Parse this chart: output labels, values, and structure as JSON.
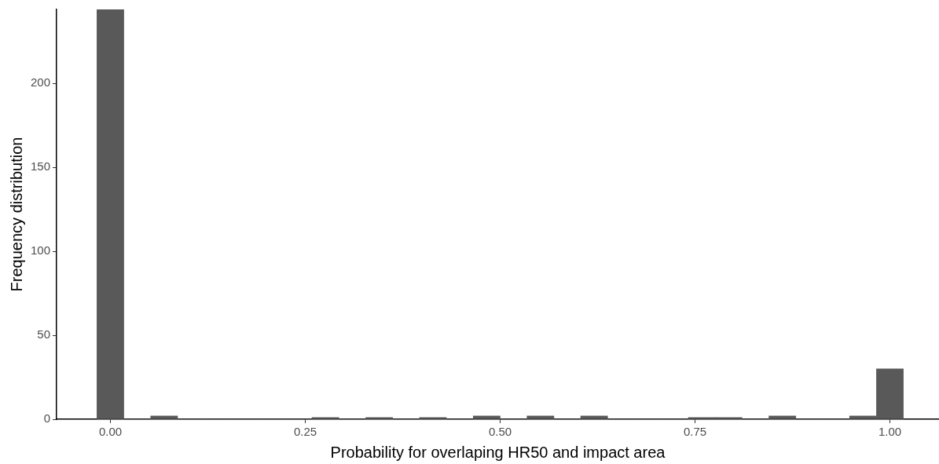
{
  "chart_data": {
    "type": "histogram",
    "xlabel": "Probability for overlaping HR50 and impact area",
    "ylabel": "Frequency distribution",
    "bins": [
      -0.0172,
      0.0172,
      0.0517,
      0.0862,
      0.1207,
      0.1552,
      0.1897,
      0.2241,
      0.2586,
      0.2931,
      0.3276,
      0.3621,
      0.3966,
      0.431,
      0.4655,
      0.5,
      0.5345,
      0.569,
      0.6034,
      0.6379,
      0.6724,
      0.7069,
      0.7414,
      0.7759,
      0.8103,
      0.8448,
      0.8793,
      0.9138,
      0.9483,
      0.9828,
      1.0172
    ],
    "values": [
      244,
      0,
      2,
      0,
      0,
      0,
      0,
      0,
      1,
      0,
      1,
      0,
      1,
      0,
      2,
      0,
      2,
      0,
      2,
      0,
      0,
      0,
      1,
      1,
      0,
      2,
      0,
      0,
      2,
      30
    ],
    "color": "#595959",
    "xlim": [
      -0.069,
      1.063
    ],
    "xticks": [
      {
        "value": 0,
        "label": "0.00"
      },
      {
        "value": 0.25,
        "label": "0.25"
      },
      {
        "value": 0.5,
        "label": "0.50"
      },
      {
        "value": 0.75,
        "label": "0.75"
      },
      {
        "value": 1,
        "label": "1.00"
      }
    ],
    "ylim": [
      0,
      244
    ],
    "yticks": [
      0,
      50,
      100,
      150,
      200
    ],
    "grid": false,
    "legend": false
  }
}
